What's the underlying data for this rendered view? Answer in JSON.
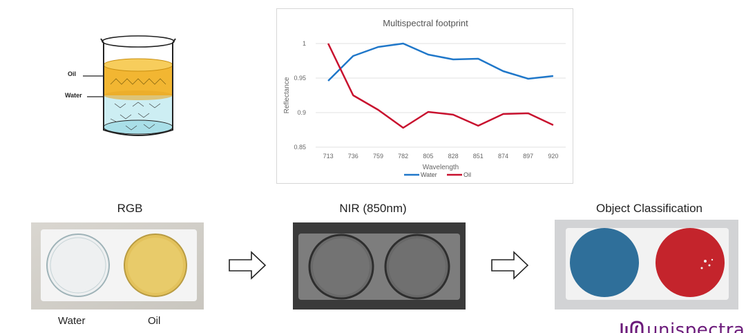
{
  "beaker": {
    "oil_label": "Oil",
    "water_label": "Water"
  },
  "chart_data": {
    "type": "line",
    "title": "Multispectral footprint",
    "xlabel": "Wavelength",
    "ylabel": "Reflectance",
    "categories": [
      "713",
      "736",
      "759",
      "782",
      "805",
      "828",
      "851",
      "874",
      "897",
      "920"
    ],
    "ylim": [
      0.85,
      1.0
    ],
    "yticks": [
      "0.85",
      "0.9",
      "0.95",
      "1"
    ],
    "grid": true,
    "legend": "bottom",
    "series": [
      {
        "name": "Water",
        "color": "#1f77c9",
        "values": [
          0.946,
          0.982,
          0.995,
          1.0,
          0.984,
          0.977,
          0.978,
          0.96,
          0.949,
          0.953
        ]
      },
      {
        "name": "Oil",
        "color": "#c8102e",
        "values": [
          1.0,
          0.925,
          0.904,
          0.878,
          0.901,
          0.897,
          0.881,
          0.898,
          0.899,
          0.882
        ]
      }
    ]
  },
  "panels": {
    "rgb_title": "RGB",
    "nir_title": "NIR (850nm)",
    "classification_title": "Object Classification",
    "water_caption": "Water",
    "oil_caption": "Oil"
  },
  "colors": {
    "water_class": "#2f6f9a",
    "oil_class": "#c4242c",
    "oil_layer": "#f2b632",
    "water_layer": "#cdeef3"
  },
  "logo": {
    "text": "unispectral"
  }
}
